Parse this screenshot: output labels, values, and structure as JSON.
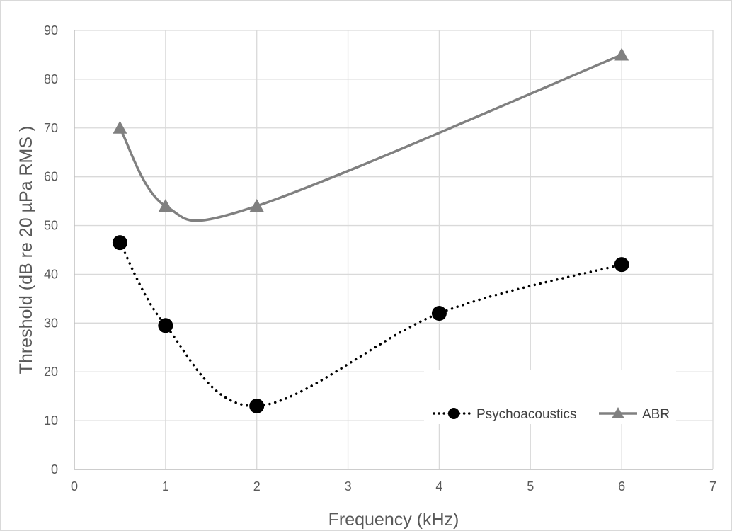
{
  "chart_data": {
    "type": "line",
    "title": "",
    "xlabel": "Frequency (kHz)",
    "ylabel": "Threshold (dB re 20 µPa RMS )",
    "xlim": [
      0,
      7
    ],
    "ylim": [
      0,
      90
    ],
    "x_ticks": [
      0,
      1,
      2,
      3,
      4,
      5,
      6,
      7
    ],
    "y_ticks": [
      0,
      10,
      20,
      30,
      40,
      50,
      60,
      70,
      80,
      90
    ],
    "grid": true,
    "legend_position": "bottom-right",
    "series": [
      {
        "name": "Psychoacoustics",
        "marker": "circle",
        "line_style": "dotted",
        "color": "#000000",
        "x": [
          0.5,
          1,
          2,
          4,
          6
        ],
        "y": [
          46.5,
          29.5,
          13,
          32,
          42
        ]
      },
      {
        "name": "ABR",
        "marker": "triangle",
        "line_style": "solid",
        "color": "#808080",
        "x": [
          0.5,
          1,
          2,
          6
        ],
        "y": [
          70,
          54,
          54,
          85
        ]
      }
    ]
  }
}
